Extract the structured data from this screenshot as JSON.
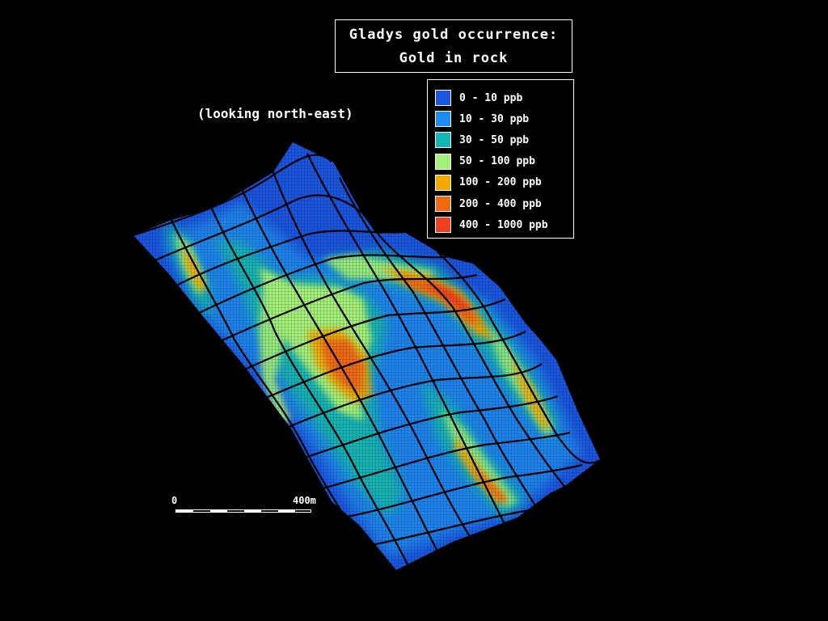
{
  "title": {
    "line1": "Gladys gold occurrence:",
    "line2": "Gold in rock"
  },
  "view_note": "(looking north-east)",
  "legend": [
    {
      "label": "0 - 10 ppb",
      "color": "#1b55e0"
    },
    {
      "label": "10 - 30 ppb",
      "color": "#1e8cf0"
    },
    {
      "label": "30 - 50 ppb",
      "color": "#16b4b4"
    },
    {
      "label": "50 - 100 ppb",
      "color": "#a5f07a"
    },
    {
      "label": "100 - 200 ppb",
      "color": "#f5a800"
    },
    {
      "label": "200 - 400 ppb",
      "color": "#f06a14"
    },
    {
      "label": "400 - 1000 ppb",
      "color": "#f0401e"
    }
  ],
  "scale_bar": {
    "start_label": "0",
    "end_label": "400m"
  },
  "colors": {
    "background": "#000000",
    "surface_base": "#1b55e0",
    "grid": "#000000"
  }
}
